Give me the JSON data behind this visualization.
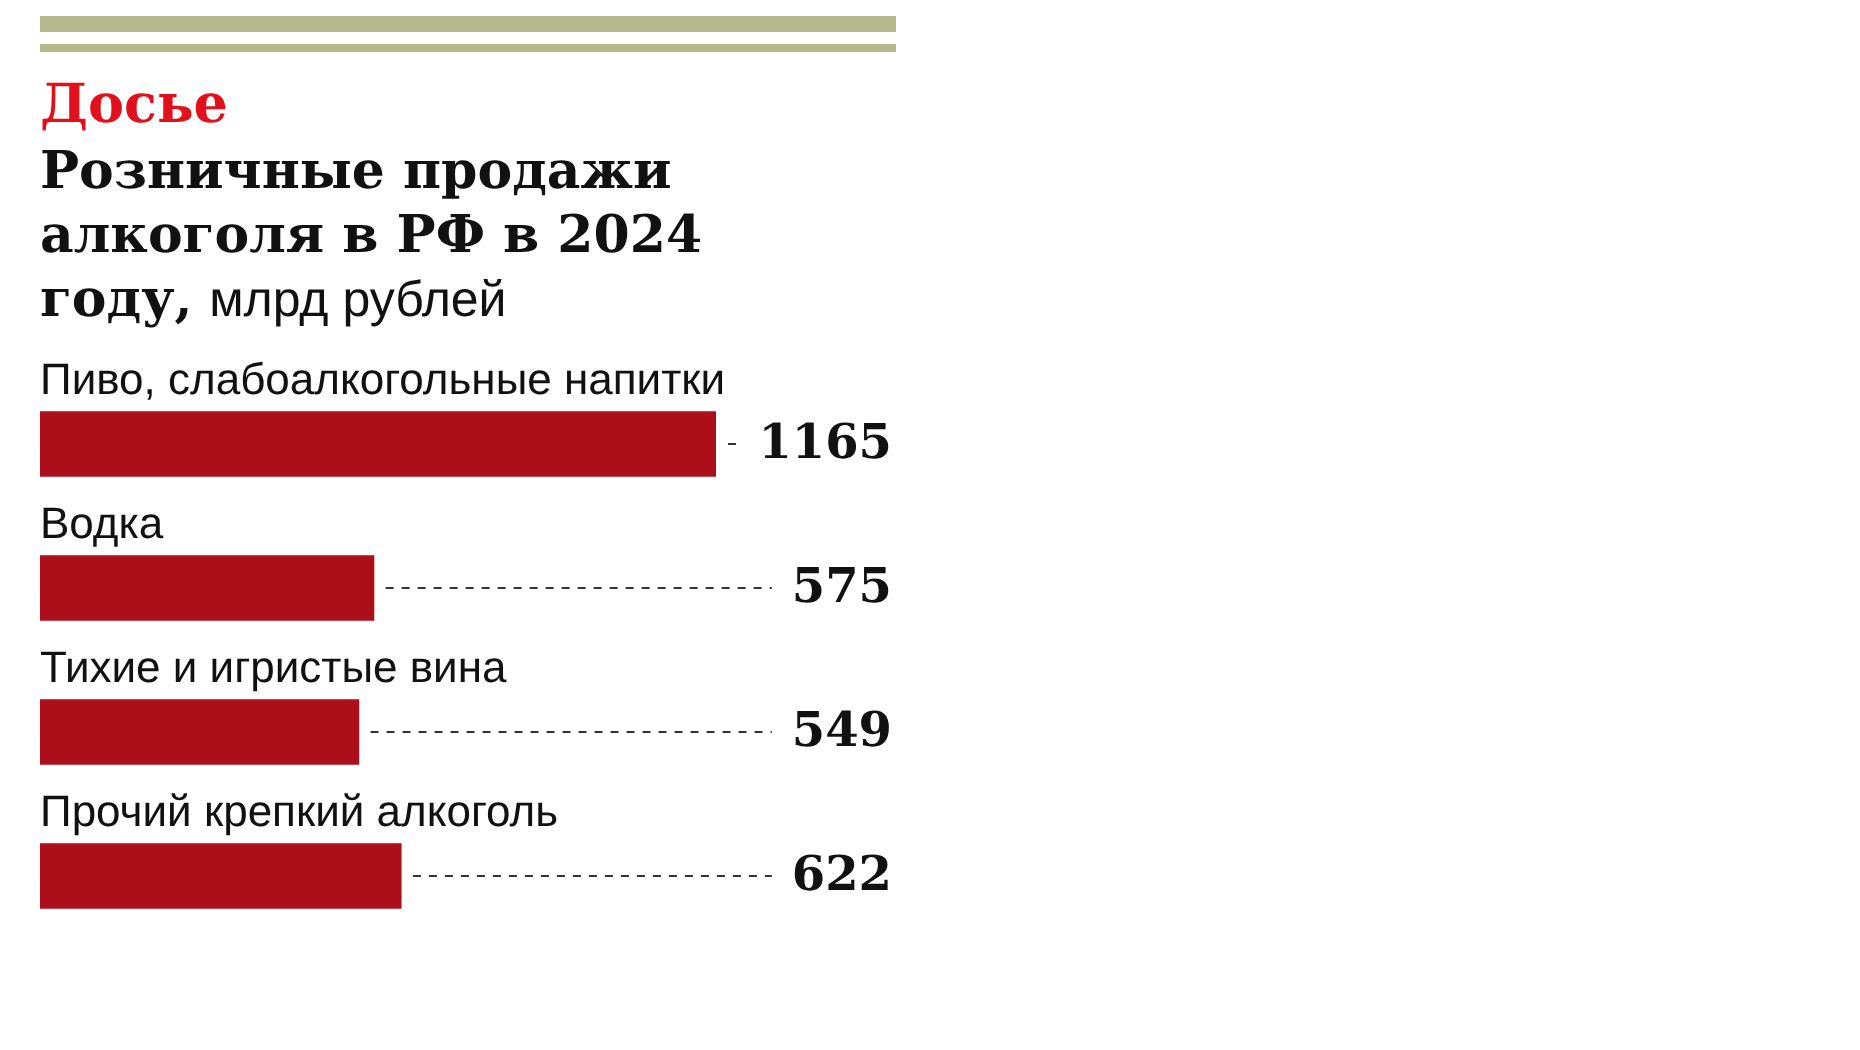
{
  "chart_data": {
    "type": "bar",
    "orientation": "horizontal",
    "subtitle": "Досье",
    "title": "Розничные продажи алкоголя в РФ в 2024 году,",
    "xlabel": "млрд рублей",
    "categories": [
      "Пиво, слабоалкогольные напитки",
      "Водка",
      "Тихие и игристые вина",
      "Прочий крепкий алкоголь"
    ],
    "values": [
      1165,
      575,
      549,
      622
    ],
    "color": "#ad0f1a",
    "data_labels": true
  }
}
